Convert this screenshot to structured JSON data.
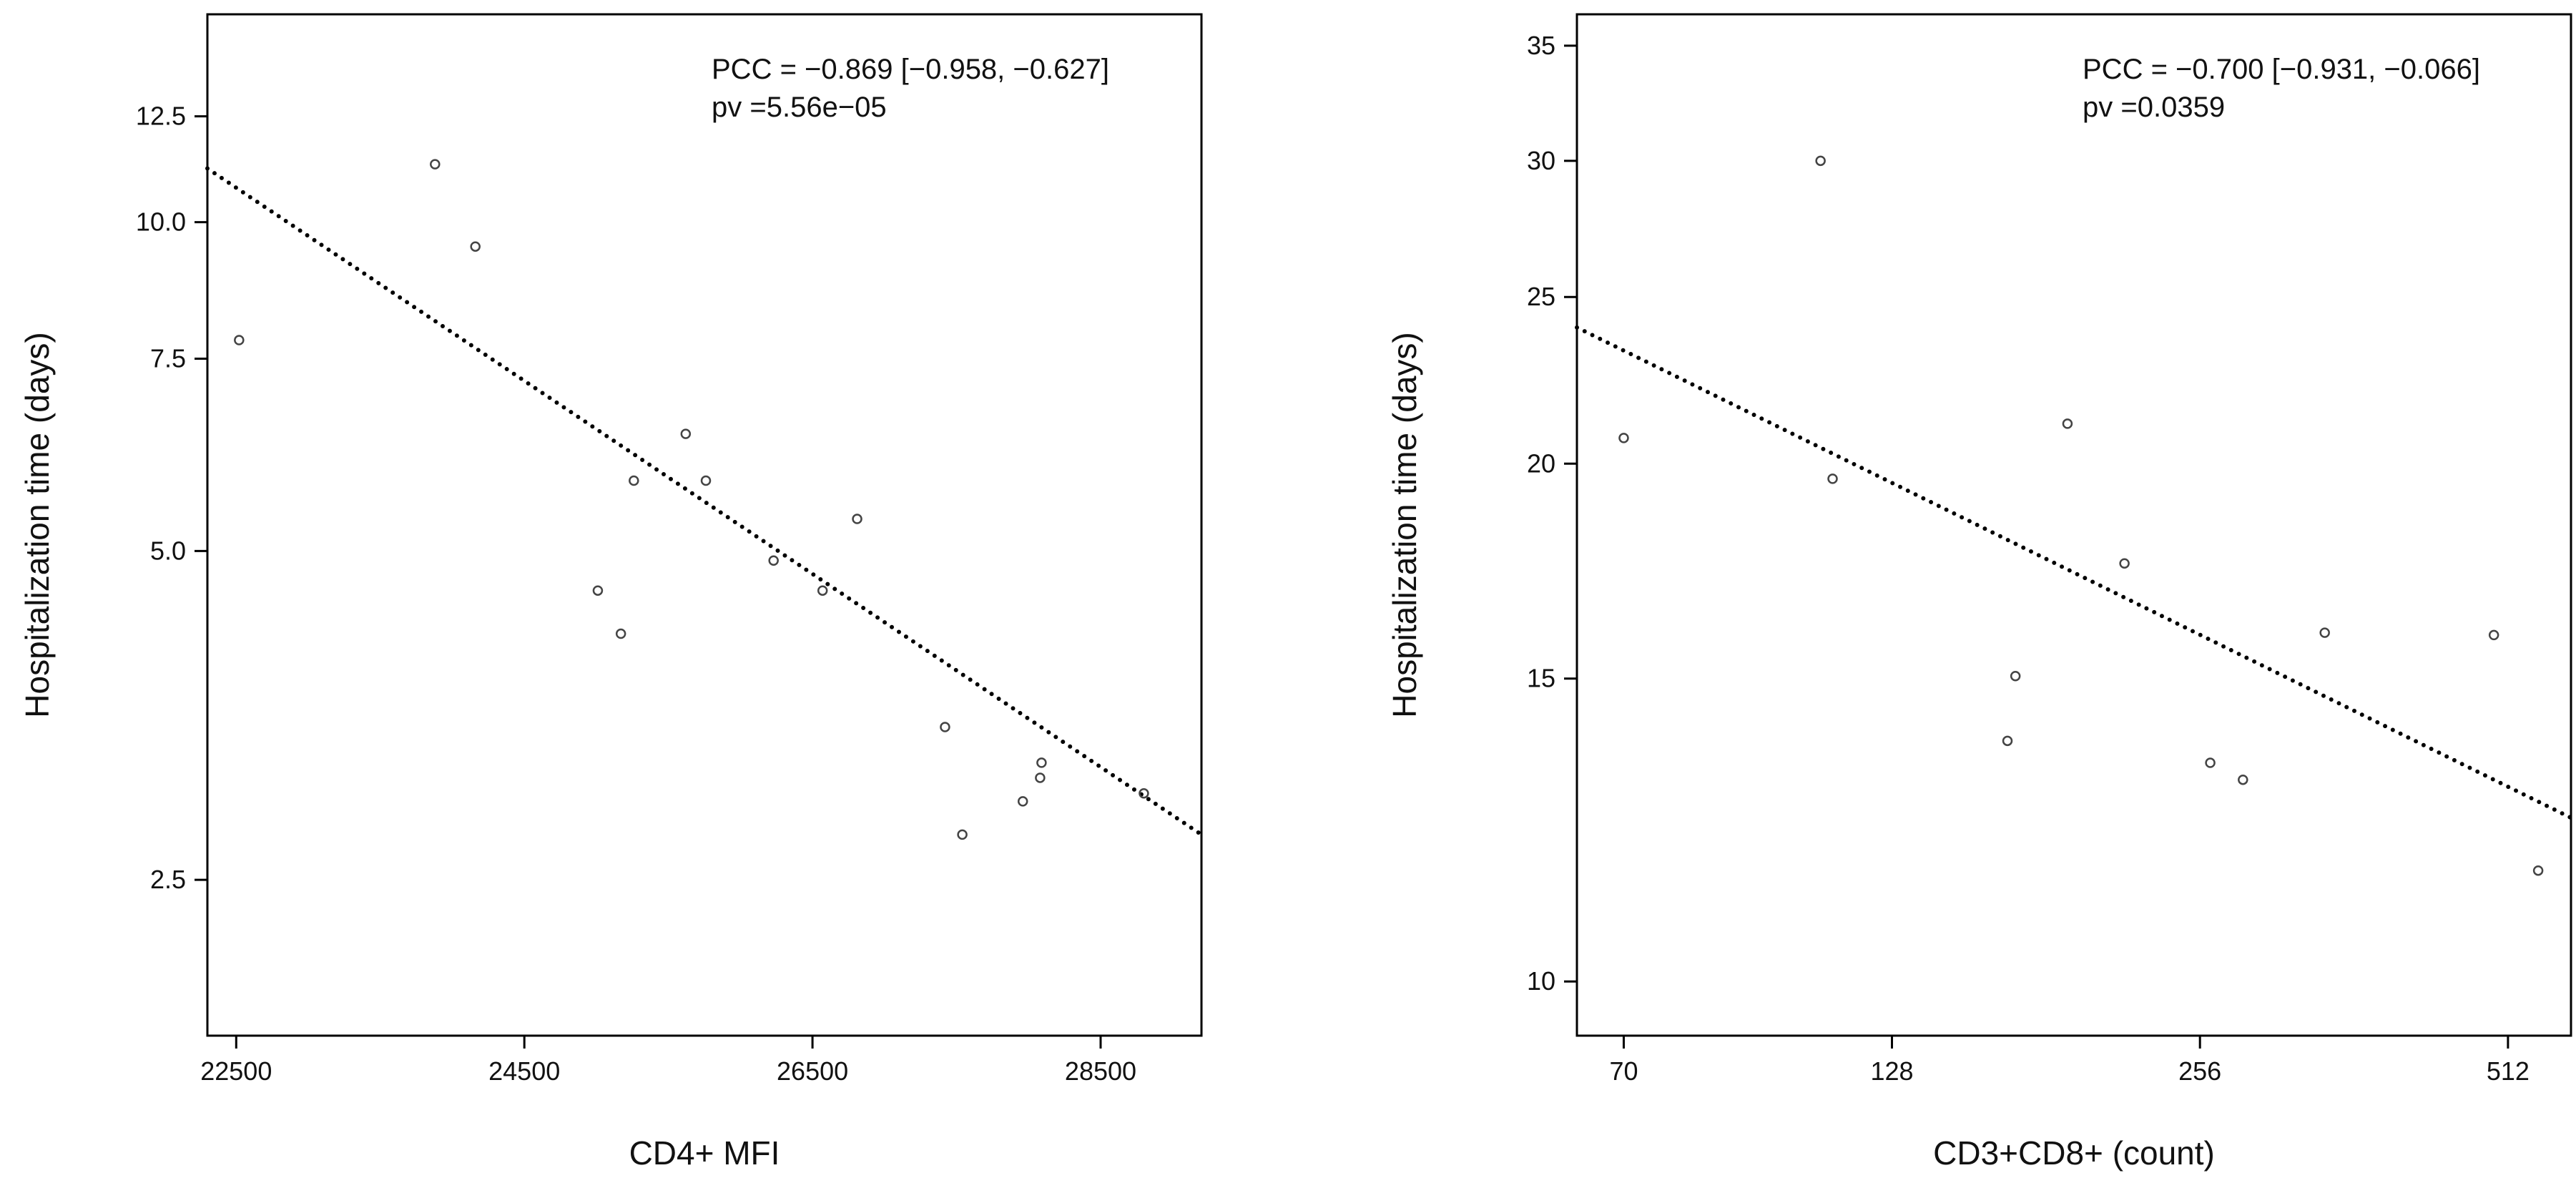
{
  "chart_data": [
    {
      "type": "scatter",
      "xlabel": "CD4+ MFI",
      "ylabel": "Hospitalization time (days)",
      "x_scale": "linear",
      "y_scale": "log",
      "xlim": [
        22300,
        29200
      ],
      "ylim": [
        1.8,
        15.5
      ],
      "x_ticks": [
        22500,
        24500,
        26500,
        28500
      ],
      "x_tick_labels": [
        "22500",
        "24500",
        "26500",
        "28500"
      ],
      "y_ticks": [
        2.5,
        5.0,
        7.5,
        10.0,
        12.5
      ],
      "y_tick_labels": [
        "2.5",
        "5.0",
        "7.5",
        "10.0",
        "12.5"
      ],
      "points": [
        {
          "x": 22520,
          "y": 7.8
        },
        {
          "x": 23880,
          "y": 11.3
        },
        {
          "x": 24160,
          "y": 9.5
        },
        {
          "x": 25010,
          "y": 4.6
        },
        {
          "x": 25170,
          "y": 4.2
        },
        {
          "x": 25260,
          "y": 5.8
        },
        {
          "x": 25620,
          "y": 6.4
        },
        {
          "x": 25760,
          "y": 5.8
        },
        {
          "x": 26230,
          "y": 4.9
        },
        {
          "x": 26570,
          "y": 4.6
        },
        {
          "x": 26810,
          "y": 5.35
        },
        {
          "x": 27420,
          "y": 3.45
        },
        {
          "x": 27540,
          "y": 2.75
        },
        {
          "x": 27960,
          "y": 2.95
        },
        {
          "x": 28080,
          "y": 3.1
        },
        {
          "x": 28090,
          "y": 3.2
        },
        {
          "x": 28800,
          "y": 3.0
        }
      ],
      "trend_line": {
        "x": [
          22300,
          29200
        ],
        "y": [
          11.2,
          2.75
        ]
      },
      "annotation": {
        "line1": "PCC = −0.869 [−0.958, −0.627]",
        "line2": "pv =5.56e−05"
      }
    },
    {
      "type": "scatter",
      "xlabel": "CD3+CD8+ (count)",
      "ylabel": "Hospitalization time (days)",
      "x_scale": "log",
      "y_scale": "log",
      "xlim": [
        63,
        590
      ],
      "ylim": [
        9.3,
        36.5
      ],
      "x_ticks": [
        70,
        128,
        256,
        512
      ],
      "x_tick_labels": [
        "70",
        "128",
        "256",
        "512"
      ],
      "y_ticks": [
        10,
        15,
        20,
        25,
        30,
        35
      ],
      "y_tick_labels": [
        "10",
        "15",
        "20",
        "25",
        "30",
        "35"
      ],
      "points": [
        {
          "x": 70,
          "y": 20.7
        },
        {
          "x": 109,
          "y": 30
        },
        {
          "x": 112,
          "y": 19.6
        },
        {
          "x": 166,
          "y": 13.8
        },
        {
          "x": 169,
          "y": 15.05
        },
        {
          "x": 190,
          "y": 21.1
        },
        {
          "x": 216,
          "y": 17.5
        },
        {
          "x": 262,
          "y": 13.4
        },
        {
          "x": 282,
          "y": 13.1
        },
        {
          "x": 339,
          "y": 15.95
        },
        {
          "x": 496,
          "y": 15.9
        },
        {
          "x": 548,
          "y": 11.6
        }
      ],
      "trend_line": {
        "x": [
          63,
          590
        ],
        "y": [
          24.0,
          12.45
        ]
      },
      "annotation": {
        "line1": "PCC = −0.700 [−0.931, −0.066]",
        "line2": "pv =0.0359"
      }
    }
  ]
}
